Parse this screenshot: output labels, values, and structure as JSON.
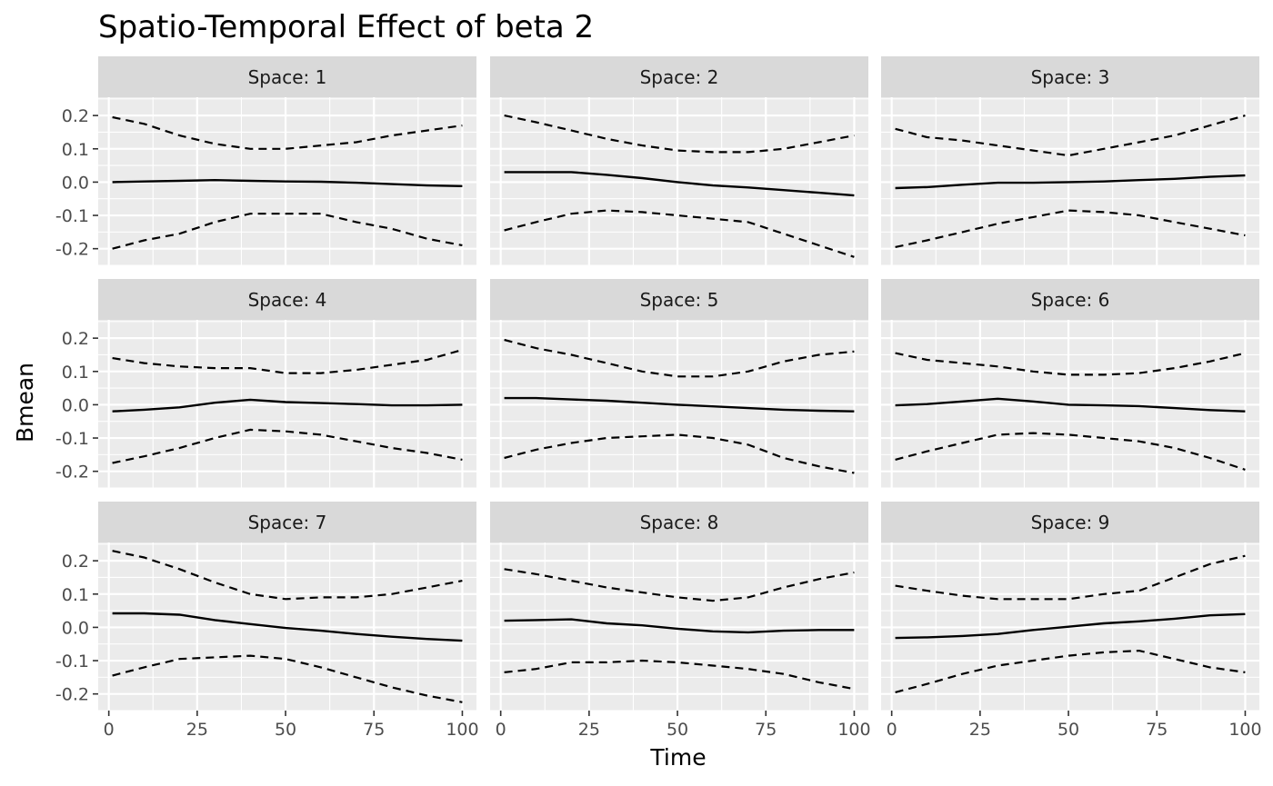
{
  "chart_data": {
    "type": "line",
    "title": "Spatio-Temporal Effect of beta 2",
    "xlabel": "Time",
    "ylabel": "Bmean",
    "xlim": [
      -3,
      104
    ],
    "ylim": [
      -0.25,
      0.255
    ],
    "x_ticks": [
      0,
      25,
      50,
      75,
      100
    ],
    "x_tick_labels": [
      "0",
      "25",
      "50",
      "75",
      "100"
    ],
    "y_ticks": [
      -0.2,
      -0.1,
      0.0,
      0.1,
      0.2
    ],
    "y_tick_labels": [
      "-0.2",
      "-0.1",
      "0.0",
      "0.1",
      "0.2"
    ],
    "grid": true,
    "facet_layout": "3x3",
    "x": [
      1,
      10,
      20,
      30,
      40,
      50,
      60,
      70,
      80,
      90,
      100
    ],
    "series_styles": {
      "mean": "solid",
      "upper": "dashed",
      "lower": "dashed"
    },
    "facets": [
      {
        "label": "Space: 1",
        "mean": [
          0.0,
          0.002,
          0.004,
          0.006,
          0.004,
          0.002,
          0.001,
          -0.002,
          -0.006,
          -0.01,
          -0.012
        ],
        "upper": [
          0.195,
          0.175,
          0.14,
          0.115,
          0.1,
          0.1,
          0.11,
          0.12,
          0.14,
          0.155,
          0.17
        ],
        "lower": [
          -0.2,
          -0.175,
          -0.155,
          -0.12,
          -0.095,
          -0.095,
          -0.095,
          -0.12,
          -0.14,
          -0.17,
          -0.19
        ]
      },
      {
        "label": "Space: 2",
        "mean": [
          0.03,
          0.03,
          0.03,
          0.022,
          0.012,
          0.0,
          -0.01,
          -0.016,
          -0.024,
          -0.032,
          -0.04
        ],
        "upper": [
          0.2,
          0.18,
          0.155,
          0.13,
          0.11,
          0.095,
          0.09,
          0.09,
          0.1,
          0.12,
          0.14
        ],
        "lower": [
          -0.145,
          -0.12,
          -0.095,
          -0.085,
          -0.09,
          -0.1,
          -0.11,
          -0.12,
          -0.155,
          -0.19,
          -0.225
        ]
      },
      {
        "label": "Space: 3",
        "mean": [
          -0.018,
          -0.015,
          -0.008,
          -0.002,
          -0.002,
          0.0,
          0.002,
          0.006,
          0.01,
          0.016,
          0.02
        ],
        "upper": [
          0.16,
          0.135,
          0.125,
          0.11,
          0.095,
          0.08,
          0.1,
          0.12,
          0.14,
          0.17,
          0.2
        ],
        "lower": [
          -0.195,
          -0.175,
          -0.15,
          -0.125,
          -0.105,
          -0.085,
          -0.09,
          -0.1,
          -0.12,
          -0.14,
          -0.16
        ]
      },
      {
        "label": "Space: 4",
        "mean": [
          -0.02,
          -0.015,
          -0.008,
          0.006,
          0.015,
          0.008,
          0.005,
          0.002,
          -0.002,
          -0.002,
          0.0
        ],
        "upper": [
          0.14,
          0.125,
          0.115,
          0.11,
          0.11,
          0.095,
          0.095,
          0.105,
          0.12,
          0.135,
          0.165
        ],
        "lower": [
          -0.175,
          -0.155,
          -0.13,
          -0.1,
          -0.075,
          -0.08,
          -0.09,
          -0.11,
          -0.13,
          -0.145,
          -0.165
        ]
      },
      {
        "label": "Space: 5",
        "mean": [
          0.02,
          0.02,
          0.016,
          0.012,
          0.006,
          0.0,
          -0.005,
          -0.01,
          -0.015,
          -0.018,
          -0.02
        ],
        "upper": [
          0.195,
          0.17,
          0.15,
          0.125,
          0.1,
          0.085,
          0.085,
          0.1,
          0.13,
          0.15,
          0.16
        ],
        "lower": [
          -0.16,
          -0.135,
          -0.115,
          -0.1,
          -0.095,
          -0.09,
          -0.1,
          -0.12,
          -0.16,
          -0.185,
          -0.205
        ]
      },
      {
        "label": "Space: 6",
        "mean": [
          -0.002,
          0.002,
          0.01,
          0.018,
          0.01,
          0.0,
          -0.002,
          -0.004,
          -0.01,
          -0.016,
          -0.02
        ],
        "upper": [
          0.155,
          0.135,
          0.125,
          0.115,
          0.1,
          0.09,
          0.09,
          0.095,
          0.11,
          0.13,
          0.155
        ],
        "lower": [
          -0.165,
          -0.14,
          -0.115,
          -0.09,
          -0.085,
          -0.09,
          -0.1,
          -0.11,
          -0.13,
          -0.16,
          -0.195
        ]
      },
      {
        "label": "Space: 7",
        "mean": [
          0.042,
          0.042,
          0.038,
          0.022,
          0.01,
          -0.002,
          -0.01,
          -0.02,
          -0.028,
          -0.035,
          -0.04
        ],
        "upper": [
          0.23,
          0.21,
          0.175,
          0.135,
          0.1,
          0.085,
          0.09,
          0.09,
          0.1,
          0.12,
          0.14
        ],
        "lower": [
          -0.145,
          -0.12,
          -0.095,
          -0.09,
          -0.085,
          -0.095,
          -0.12,
          -0.15,
          -0.18,
          -0.205,
          -0.225
        ]
      },
      {
        "label": "Space: 8",
        "mean": [
          0.02,
          0.022,
          0.024,
          0.012,
          0.006,
          -0.004,
          -0.012,
          -0.015,
          -0.01,
          -0.008,
          -0.008
        ],
        "upper": [
          0.175,
          0.16,
          0.14,
          0.12,
          0.105,
          0.09,
          0.08,
          0.09,
          0.12,
          0.145,
          0.165
        ],
        "lower": [
          -0.135,
          -0.125,
          -0.105,
          -0.105,
          -0.1,
          -0.105,
          -0.115,
          -0.125,
          -0.14,
          -0.165,
          -0.185
        ]
      },
      {
        "label": "Space: 9",
        "mean": [
          -0.032,
          -0.03,
          -0.026,
          -0.02,
          -0.008,
          0.002,
          0.012,
          0.018,
          0.026,
          0.036,
          0.04
        ],
        "upper": [
          0.125,
          0.11,
          0.095,
          0.085,
          0.085,
          0.085,
          0.1,
          0.11,
          0.15,
          0.19,
          0.215
        ],
        "lower": [
          -0.195,
          -0.17,
          -0.14,
          -0.115,
          -0.1,
          -0.085,
          -0.075,
          -0.07,
          -0.095,
          -0.12,
          -0.135
        ]
      }
    ]
  }
}
